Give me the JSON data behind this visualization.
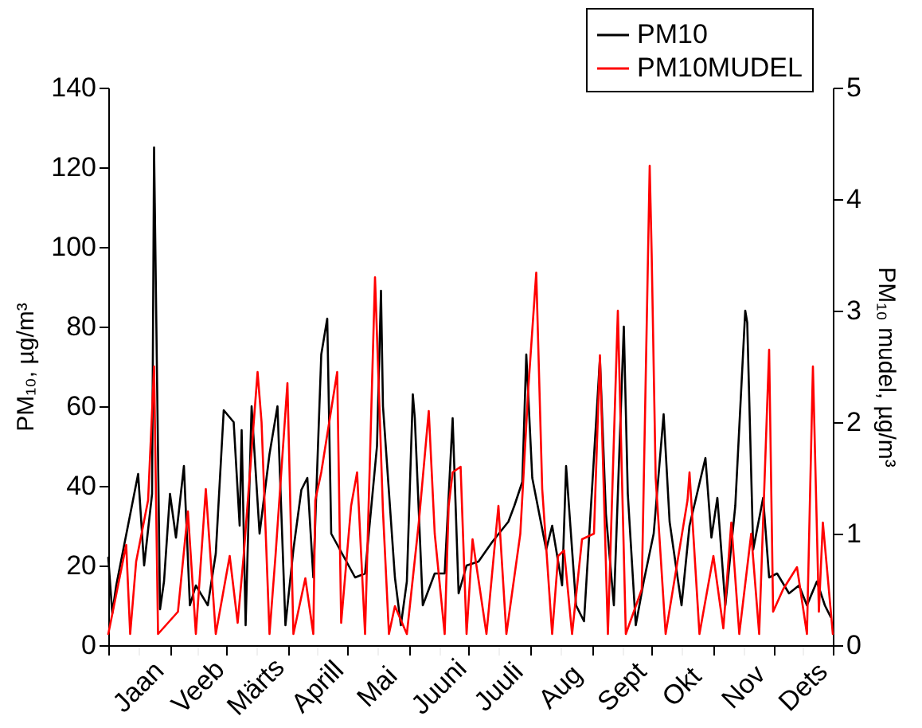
{
  "chart_data": {
    "type": "line",
    "ylabel": "PM₁₀, µg/m³",
    "y2label": "PM₁₀ mudel, µg/m³",
    "xlim": [
      "--01-01",
      "--12-31"
    ],
    "xticks": [
      {
        "value": "--01-01",
        "label": null
      },
      {
        "value": "--01-16",
        "label": "Jaan"
      },
      {
        "value": "--02-01",
        "label": null
      },
      {
        "value": "--02-15",
        "label": "Veeb"
      },
      {
        "value": "--03-01",
        "label": null
      },
      {
        "value": "--03-16",
        "label": "Märts"
      },
      {
        "value": "--04-01",
        "label": null
      },
      {
        "value": "--04-16",
        "label": "Aprill"
      },
      {
        "value": "--05-01",
        "label": null
      },
      {
        "value": "--05-16",
        "label": "Mai"
      },
      {
        "value": "--06-01",
        "label": null
      },
      {
        "value": "--06-16",
        "label": "Juuni"
      },
      {
        "value": "--07-01",
        "label": null
      },
      {
        "value": "--07-16",
        "label": "Juuli"
      },
      {
        "value": "--08-01",
        "label": null
      },
      {
        "value": "--08-16",
        "label": "Aug"
      },
      {
        "value": "--09-01",
        "label": null
      },
      {
        "value": "--09-16",
        "label": "Sept"
      },
      {
        "value": "--10-01",
        "label": null
      },
      {
        "value": "--10-16",
        "label": "Okt"
      },
      {
        "value": "--11-01",
        "label": null
      },
      {
        "value": "--11-16",
        "label": "Nov"
      },
      {
        "value": "--12-01",
        "label": null
      },
      {
        "value": "--12-16",
        "label": "Dets"
      },
      {
        "value": "--12-31",
        "label": null
      }
    ],
    "ylim": [
      0,
      140
    ],
    "yticks": [
      0,
      20,
      40,
      60,
      80,
      100,
      120,
      140
    ],
    "y2lim": [
      0,
      5
    ],
    "y2ticks": [
      0,
      1,
      2,
      3,
      4,
      5
    ],
    "legend": "top right",
    "series": [
      {
        "name": "PM10",
        "color": "#000000",
        "x": [
          "--01-01",
          "--01-03",
          "--01-05",
          "--01-16",
          "--01-19",
          "--01-23",
          "--01-24",
          "--01-27",
          "--01-29",
          "--02-01",
          "--02-04",
          "--02-08",
          "--02-11",
          "--02-14",
          "--02-20",
          "--02-24",
          "--02-28",
          "--03-05",
          "--03-08",
          "--03-09",
          "--03-11",
          "--03-14",
          "--03-18",
          "--03-23",
          "--03-27",
          "--03-31",
          "--04-04",
          "--04-08",
          "--04-11",
          "--04-14",
          "--04-18",
          "--04-21",
          "--04-23",
          "--05-05",
          "--05-10",
          "--05-16",
          "--05-18",
          "--05-19",
          "--05-25",
          "--05-28",
          "--05-31",
          "--06-03",
          "--06-04",
          "--06-08",
          "--06-14",
          "--06-19",
          "--06-23",
          "--06-26",
          "--06-30",
          "--07-06",
          "--07-13",
          "--07-21",
          "--07-24",
          "--07-28",
          "--07-30",
          "--08-02",
          "--08-09",
          "--08-12",
          "--08-17",
          "--08-19",
          "--08-24",
          "--08-28",
          "--09-05",
          "--09-08",
          "--09-12",
          "--09-17",
          "--09-19",
          "--09-23",
          "--09-27",
          "--10-02",
          "--10-07",
          "--10-10",
          "--10-16",
          "--10-20",
          "--10-28",
          "--10-31",
          "--11-03",
          "--11-07",
          "--11-12",
          "--11-17",
          "--11-18",
          "--11-21",
          "--11-26",
          "--11-29",
          "--12-03",
          "--12-09",
          "--12-14",
          "--12-18",
          "--12-23",
          "--12-27",
          "--12-30"
        ],
        "values": [
          22,
          8,
          15,
          43,
          20,
          38,
          125,
          9,
          16,
          38,
          27,
          45,
          10,
          15,
          10,
          23,
          59,
          56,
          30,
          54,
          5,
          60,
          28,
          48,
          60,
          5,
          24,
          39,
          42,
          17,
          73,
          82,
          28,
          17,
          18,
          50,
          89,
          60,
          17,
          5,
          16,
          63,
          57,
          10,
          18,
          18,
          57,
          13,
          20,
          21,
          26,
          31,
          35,
          41,
          73,
          42,
          24,
          30,
          15,
          45,
          10,
          6,
          72,
          33,
          10,
          80,
          38,
          5,
          16,
          28,
          58,
          31,
          10,
          30,
          47,
          27,
          37,
          10,
          35,
          84,
          81,
          24,
          37,
          17,
          18,
          13,
          15,
          10,
          16,
          10,
          7
        ]
      },
      {
        "name": "PM10MUDEL",
        "color": "#ff0000",
        "axis": "y2",
        "x": [
          "--01-01",
          "--01-10",
          "--01-12",
          "--01-15",
          "--01-21",
          "--01-24",
          "--01-26",
          "--02-05",
          "--02-10",
          "--02-14",
          "--02-19",
          "--02-24",
          "--03-03",
          "--03-07",
          "--03-10",
          "--03-17",
          "--03-19",
          "--03-23",
          "--03-26",
          "--04-01",
          "--04-04",
          "--04-10",
          "--04-14",
          "--04-15",
          "--04-18",
          "--04-26",
          "--04-28",
          "--05-03",
          "--05-06",
          "--05-10",
          "--05-15",
          "--05-19",
          "--05-22",
          "--05-25",
          "--05-31",
          "--06-06",
          "--06-11",
          "--06-14",
          "--06-19",
          "--06-21",
          "--06-23",
          "--06-27",
          "--06-30",
          "--07-03",
          "--07-10",
          "--07-16",
          "--07-20",
          "--07-27",
          "--07-31",
          "--08-04",
          "--08-07",
          "--08-12",
          "--08-15",
          "--08-18",
          "--08-22",
          "--08-27",
          "--09-02",
          "--09-05",
          "--09-09",
          "--09-14",
          "--09-18",
          "--09-26",
          "--09-30",
          "--10-01",
          "--10-03",
          "--10-08",
          "--10-19",
          "--10-20",
          "--10-25",
          "--11-01",
          "--11-06",
          "--11-10",
          "--11-14",
          "--11-20",
          "--11-24",
          "--11-29",
          "--12-01",
          "--12-06",
          "--12-13",
          "--12-18",
          "--12-21",
          "--12-24",
          "--12-26",
          "--12-31"
        ],
        "values": [
          0.1,
          0.9,
          0.1,
          0.75,
          1.3,
          2.5,
          0.1,
          0.3,
          1.2,
          0.1,
          1.4,
          0.1,
          0.8,
          0.2,
          0.8,
          2.45,
          2.0,
          0.1,
          0.8,
          2.35,
          0.1,
          0.6,
          0.1,
          1.3,
          1.55,
          2.45,
          0.2,
          1.25,
          1.55,
          0.1,
          3.3,
          1.2,
          0.1,
          0.35,
          0.1,
          1.1,
          2.1,
          1.0,
          0.1,
          1.25,
          1.55,
          1.6,
          0.1,
          0.95,
          0.1,
          1.25,
          0.1,
          1.0,
          2.3,
          3.34,
          1.4,
          0.1,
          0.8,
          0.85,
          0.1,
          0.95,
          1.0,
          2.6,
          0.1,
          3.0,
          0.1,
          0.5,
          4.3,
          3.5,
          1.5,
          0.1,
          1.3,
          1.55,
          0.1,
          0.8,
          0.15,
          1.1,
          0.1,
          1.0,
          0.1,
          2.65,
          0.3,
          0.5,
          0.7,
          0.1,
          2.5,
          0.3,
          1.1,
          0.1
        ]
      }
    ]
  }
}
